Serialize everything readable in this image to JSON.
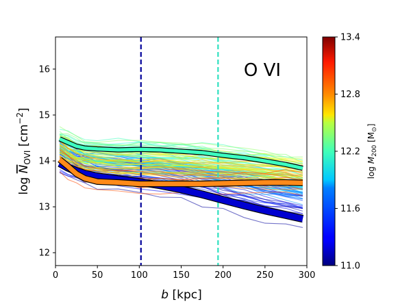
{
  "chart_data": {
    "type": "line",
    "panel_title": "O VI",
    "xlabel_main": "b",
    "xlabel_unit": "[kpc]",
    "ylabel_log": "log",
    "ylabel_N": "N",
    "ylabel_sub": "OVI",
    "ylabel_unit_open": "[cm",
    "ylabel_unit_exp": "−2",
    "ylabel_unit_close": "]",
    "xlim": [
      0,
      300
    ],
    "ylim": [
      11.72,
      16.7
    ],
    "x_ticks": [
      0,
      50,
      100,
      150,
      200,
      250,
      300
    ],
    "y_ticks": [
      12,
      13,
      14,
      15,
      16
    ],
    "colorbar": {
      "label_log": "log",
      "label_M": "M",
      "label_sub": "200",
      "label_unit_open": "[M",
      "label_unit_sub": "⊙",
      "label_unit_close": "]",
      "range": [
        11.0,
        13.4
      ],
      "ticks": [
        "11.0",
        "11.6",
        "12.2",
        "12.8",
        "13.4"
      ],
      "colormap": "jet"
    },
    "vlines": [
      {
        "name": "dark-blue-radius",
        "x": 102,
        "color": "#00009a"
      },
      {
        "name": "cyan-radius",
        "x": 194,
        "color": "#30e0c0"
      }
    ],
    "x": [
      5,
      15,
      25,
      35,
      50,
      75,
      100,
      125,
      150,
      175,
      200,
      225,
      250,
      275,
      295
    ],
    "median_series": [
      {
        "name": "high-mass-median",
        "color": "#3cffc0",
        "logM": 12.1,
        "values": [
          14.48,
          14.4,
          14.32,
          14.28,
          14.26,
          14.24,
          14.25,
          14.24,
          14.21,
          14.18,
          14.12,
          14.07,
          14.0,
          13.92,
          13.84
        ]
      },
      {
        "name": "low-mass-median",
        "color": "#0000d0",
        "logM": 11.1,
        "values": [
          13.95,
          13.85,
          13.78,
          13.72,
          13.66,
          13.6,
          13.54,
          13.47,
          13.38,
          13.27,
          13.15,
          13.03,
          12.92,
          12.82,
          12.74
        ]
      },
      {
        "name": "group-mass-median",
        "color": "#ff8a1a",
        "logM": 12.9,
        "values": [
          14.03,
          13.88,
          13.72,
          13.62,
          13.55,
          13.53,
          13.5,
          13.5,
          13.5,
          13.5,
          13.51,
          13.52,
          13.53,
          13.53,
          13.52
        ]
      }
    ]
  }
}
